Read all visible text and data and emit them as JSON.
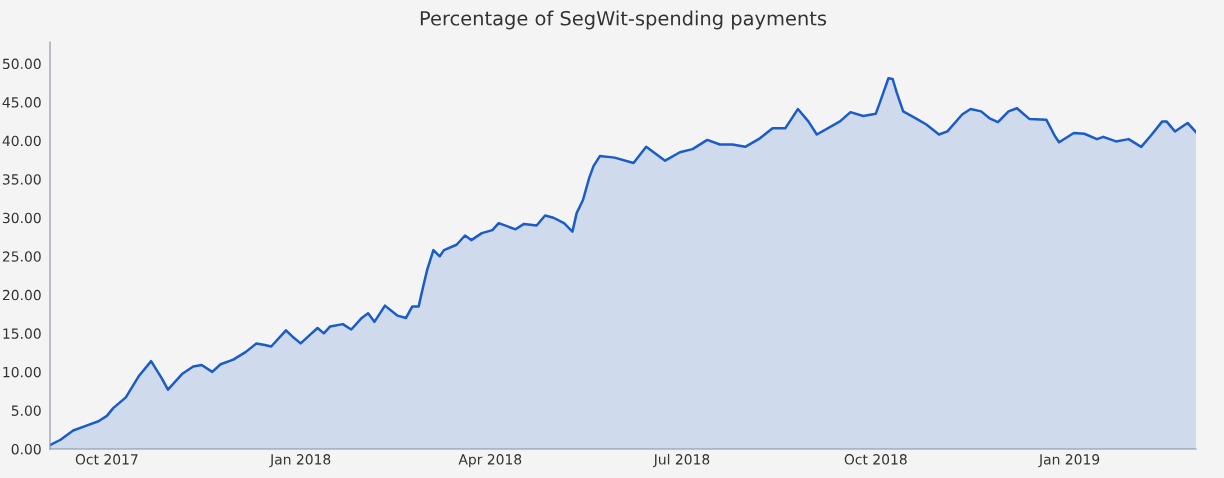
{
  "chart_data": {
    "type": "area",
    "title": "Percentage of SegWit-spending payments",
    "x": [
      "2017-09-04",
      "2017-09-09",
      "2017-09-15",
      "2017-09-21",
      "2017-09-27",
      "2017-10-01",
      "2017-10-04",
      "2017-10-10",
      "2017-10-16",
      "2017-10-22",
      "2017-10-27",
      "2017-10-30",
      "2017-11-02",
      "2017-11-06",
      "2017-11-11",
      "2017-11-15",
      "2017-11-20",
      "2017-11-24",
      "2017-11-30",
      "2017-12-06",
      "2017-12-11",
      "2017-12-15",
      "2017-12-18",
      "2017-12-25",
      "2017-12-28",
      "2018-01-01",
      "2018-01-05",
      "2018-01-09",
      "2018-01-12",
      "2018-01-15",
      "2018-01-21",
      "2018-01-25",
      "2018-01-30",
      "2018-02-02",
      "2018-02-05",
      "2018-02-10",
      "2018-02-16",
      "2018-02-20",
      "2018-02-23",
      "2018-02-26",
      "2018-02-28",
      "2018-03-02",
      "2018-03-05",
      "2018-03-08",
      "2018-03-10",
      "2018-03-16",
      "2018-03-20",
      "2018-03-23",
      "2018-03-28",
      "2018-04-02",
      "2018-04-05",
      "2018-04-13",
      "2018-04-17",
      "2018-04-23",
      "2018-04-27",
      "2018-05-01",
      "2018-05-06",
      "2018-05-10",
      "2018-05-12",
      "2018-05-15",
      "2018-05-18",
      "2018-05-20",
      "2018-05-23",
      "2018-05-30",
      "2018-06-08",
      "2018-06-14",
      "2018-06-23",
      "2018-06-30",
      "2018-07-06",
      "2018-07-13",
      "2018-07-19",
      "2018-07-25",
      "2018-07-31",
      "2018-08-07",
      "2018-08-13",
      "2018-08-19",
      "2018-08-25",
      "2018-08-30",
      "2018-09-03",
      "2018-09-14",
      "2018-09-19",
      "2018-09-25",
      "2018-10-01",
      "2018-10-03",
      "2018-10-07",
      "2018-10-09",
      "2018-10-11",
      "2018-10-14",
      "2018-10-20",
      "2018-10-25",
      "2018-10-31",
      "2018-11-04",
      "2018-11-11",
      "2018-11-15",
      "2018-11-20",
      "2018-11-24",
      "2018-11-28",
      "2018-12-03",
      "2018-12-07",
      "2018-12-13",
      "2018-12-21",
      "2018-12-25",
      "2018-12-27",
      "2019-01-03",
      "2019-01-08",
      "2019-01-14",
      "2019-01-17",
      "2019-01-23",
      "2019-01-29",
      "2019-02-04",
      "2019-02-09",
      "2019-02-14",
      "2019-02-16",
      "2019-02-20",
      "2019-02-26",
      "2019-03-02"
    ],
    "series": [
      {
        "color": "#1a5cc8",
        "values": [
          0.5,
          1.2,
          2.4,
          3.0,
          3.6,
          4.3,
          5.3,
          6.7,
          9.4,
          11.4,
          9.2,
          7.7,
          8.6,
          9.8,
          10.7,
          10.9,
          10.0,
          11.0,
          11.6,
          12.6,
          13.7,
          13.5,
          13.3,
          15.4,
          14.6,
          13.7,
          14.7,
          15.7,
          15.0,
          15.9,
          16.2,
          15.5,
          17.0,
          17.6,
          16.5,
          18.6,
          17.3,
          17.0,
          18.5,
          18.5,
          20.9,
          23.2,
          25.8,
          25.0,
          25.8,
          26.5,
          27.7,
          27.1,
          28.0,
          28.4,
          29.3,
          28.5,
          29.2,
          29.0,
          30.3,
          30.0,
          29.3,
          28.2,
          30.6,
          32.3,
          35.2,
          36.7,
          38.0,
          37.8,
          37.1,
          39.2,
          37.4,
          38.5,
          38.9,
          40.1,
          39.5,
          39.5,
          39.2,
          40.3,
          41.6,
          41.6,
          44.1,
          42.5,
          40.8,
          42.5,
          43.7,
          43.2,
          43.5,
          45.0,
          48.1,
          48.0,
          46.2,
          43.8,
          42.9,
          42.1,
          40.8,
          41.2,
          43.4,
          44.1,
          43.8,
          42.9,
          42.4,
          43.8,
          44.2,
          42.8,
          42.7,
          40.6,
          39.8,
          41.0,
          40.9,
          40.2,
          40.5,
          39.9,
          40.2,
          39.2,
          40.8,
          42.5,
          42.5,
          41.2,
          42.3,
          41.1
        ]
      }
    ],
    "xlim": [
      "2017-09-04",
      "2019-03-02"
    ],
    "xticks": [
      {
        "value": "2017-10-01",
        "label": "Oct 2017"
      },
      {
        "value": "2018-01-01",
        "label": "Jan 2018"
      },
      {
        "value": "2018-04-01",
        "label": "Apr 2018"
      },
      {
        "value": "2018-07-01",
        "label": "Jul 2018"
      },
      {
        "value": "2018-10-01",
        "label": "Oct 2018"
      },
      {
        "value": "2019-01-01",
        "label": "Jan 2019"
      }
    ],
    "ylim": [
      0,
      52.8
    ],
    "yticks": [
      {
        "value": 0,
        "label": "0.00"
      },
      {
        "value": 5,
        "label": "5.00"
      },
      {
        "value": 10,
        "label": "10.00"
      },
      {
        "value": 15,
        "label": "15.00"
      },
      {
        "value": 20,
        "label": "20.00"
      },
      {
        "value": 25,
        "label": "25.00"
      },
      {
        "value": 30,
        "label": "30.00"
      },
      {
        "value": 35,
        "label": "35.00"
      },
      {
        "value": 40,
        "label": "40.00"
      },
      {
        "value": 45,
        "label": "45.00"
      },
      {
        "value": 50,
        "label": "50.00"
      }
    ],
    "grid": false,
    "legend": false
  }
}
